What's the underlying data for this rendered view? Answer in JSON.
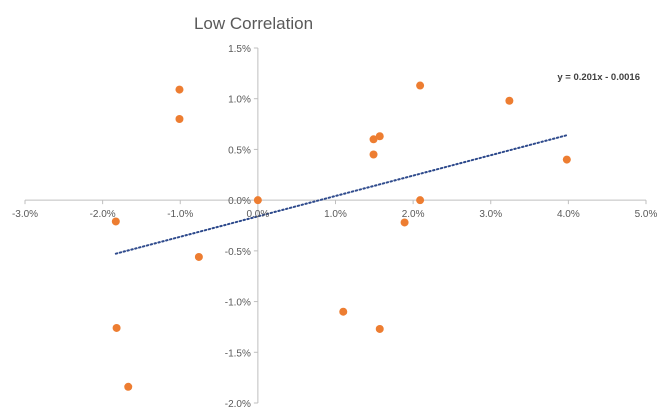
{
  "chart_data": {
    "type": "scatter",
    "title": "Low Correlation",
    "xlabel": "",
    "ylabel": "",
    "xlim": [
      -0.03,
      0.05
    ],
    "ylim": [
      -0.02,
      0.015
    ],
    "x_ticks": [
      -0.03,
      -0.02,
      -0.01,
      0.0,
      0.01,
      0.02,
      0.03,
      0.04,
      0.05
    ],
    "x_tick_labels": [
      "-3.0%",
      "-2.0%",
      "-1.0%",
      "0.0%",
      "1.0%",
      "2.0%",
      "3.0%",
      "4.0%",
      "5.0%"
    ],
    "y_ticks": [
      0.015,
      0.01,
      0.005,
      0.0,
      -0.005,
      -0.01,
      -0.015,
      -0.02
    ],
    "y_tick_labels": [
      "1.5%",
      "1.0%",
      "0.5%",
      "0.0%",
      "-0.5%",
      "-1.0%",
      "-1.5%",
      "-2.0%"
    ],
    "grid": false,
    "legend": "none",
    "series": [
      {
        "color": "#ED7D31",
        "points": [
          {
            "x": -0.0183,
            "y": -0.0021
          },
          {
            "x": -0.0101,
            "y": 0.0109
          },
          {
            "x": -0.0101,
            "y": 0.008
          },
          {
            "x": -0.0076,
            "y": -0.0056
          },
          {
            "x": -0.0182,
            "y": -0.0126
          },
          {
            "x": -0.0167,
            "y": -0.0184
          },
          {
            "x": 0.0,
            "y": 0.0
          },
          {
            "x": 0.011,
            "y": -0.011
          },
          {
            "x": 0.0149,
            "y": 0.006
          },
          {
            "x": 0.0157,
            "y": 0.0063
          },
          {
            "x": 0.0149,
            "y": 0.0045
          },
          {
            "x": 0.0157,
            "y": -0.0127
          },
          {
            "x": 0.0189,
            "y": -0.0022
          },
          {
            "x": 0.0209,
            "y": 0.0113
          },
          {
            "x": 0.0209,
            "y": 0.0
          },
          {
            "x": 0.0324,
            "y": 0.0098
          },
          {
            "x": 0.0398,
            "y": 0.004
          }
        ]
      }
    ],
    "trendline": {
      "type": "linear",
      "slope": 0.201,
      "intercept": -0.0016,
      "x_range": [
        -0.0183,
        0.0398
      ],
      "color": "#2E4A8C",
      "style": "dotted",
      "label": "y = 0.201x - 0.0016"
    }
  }
}
